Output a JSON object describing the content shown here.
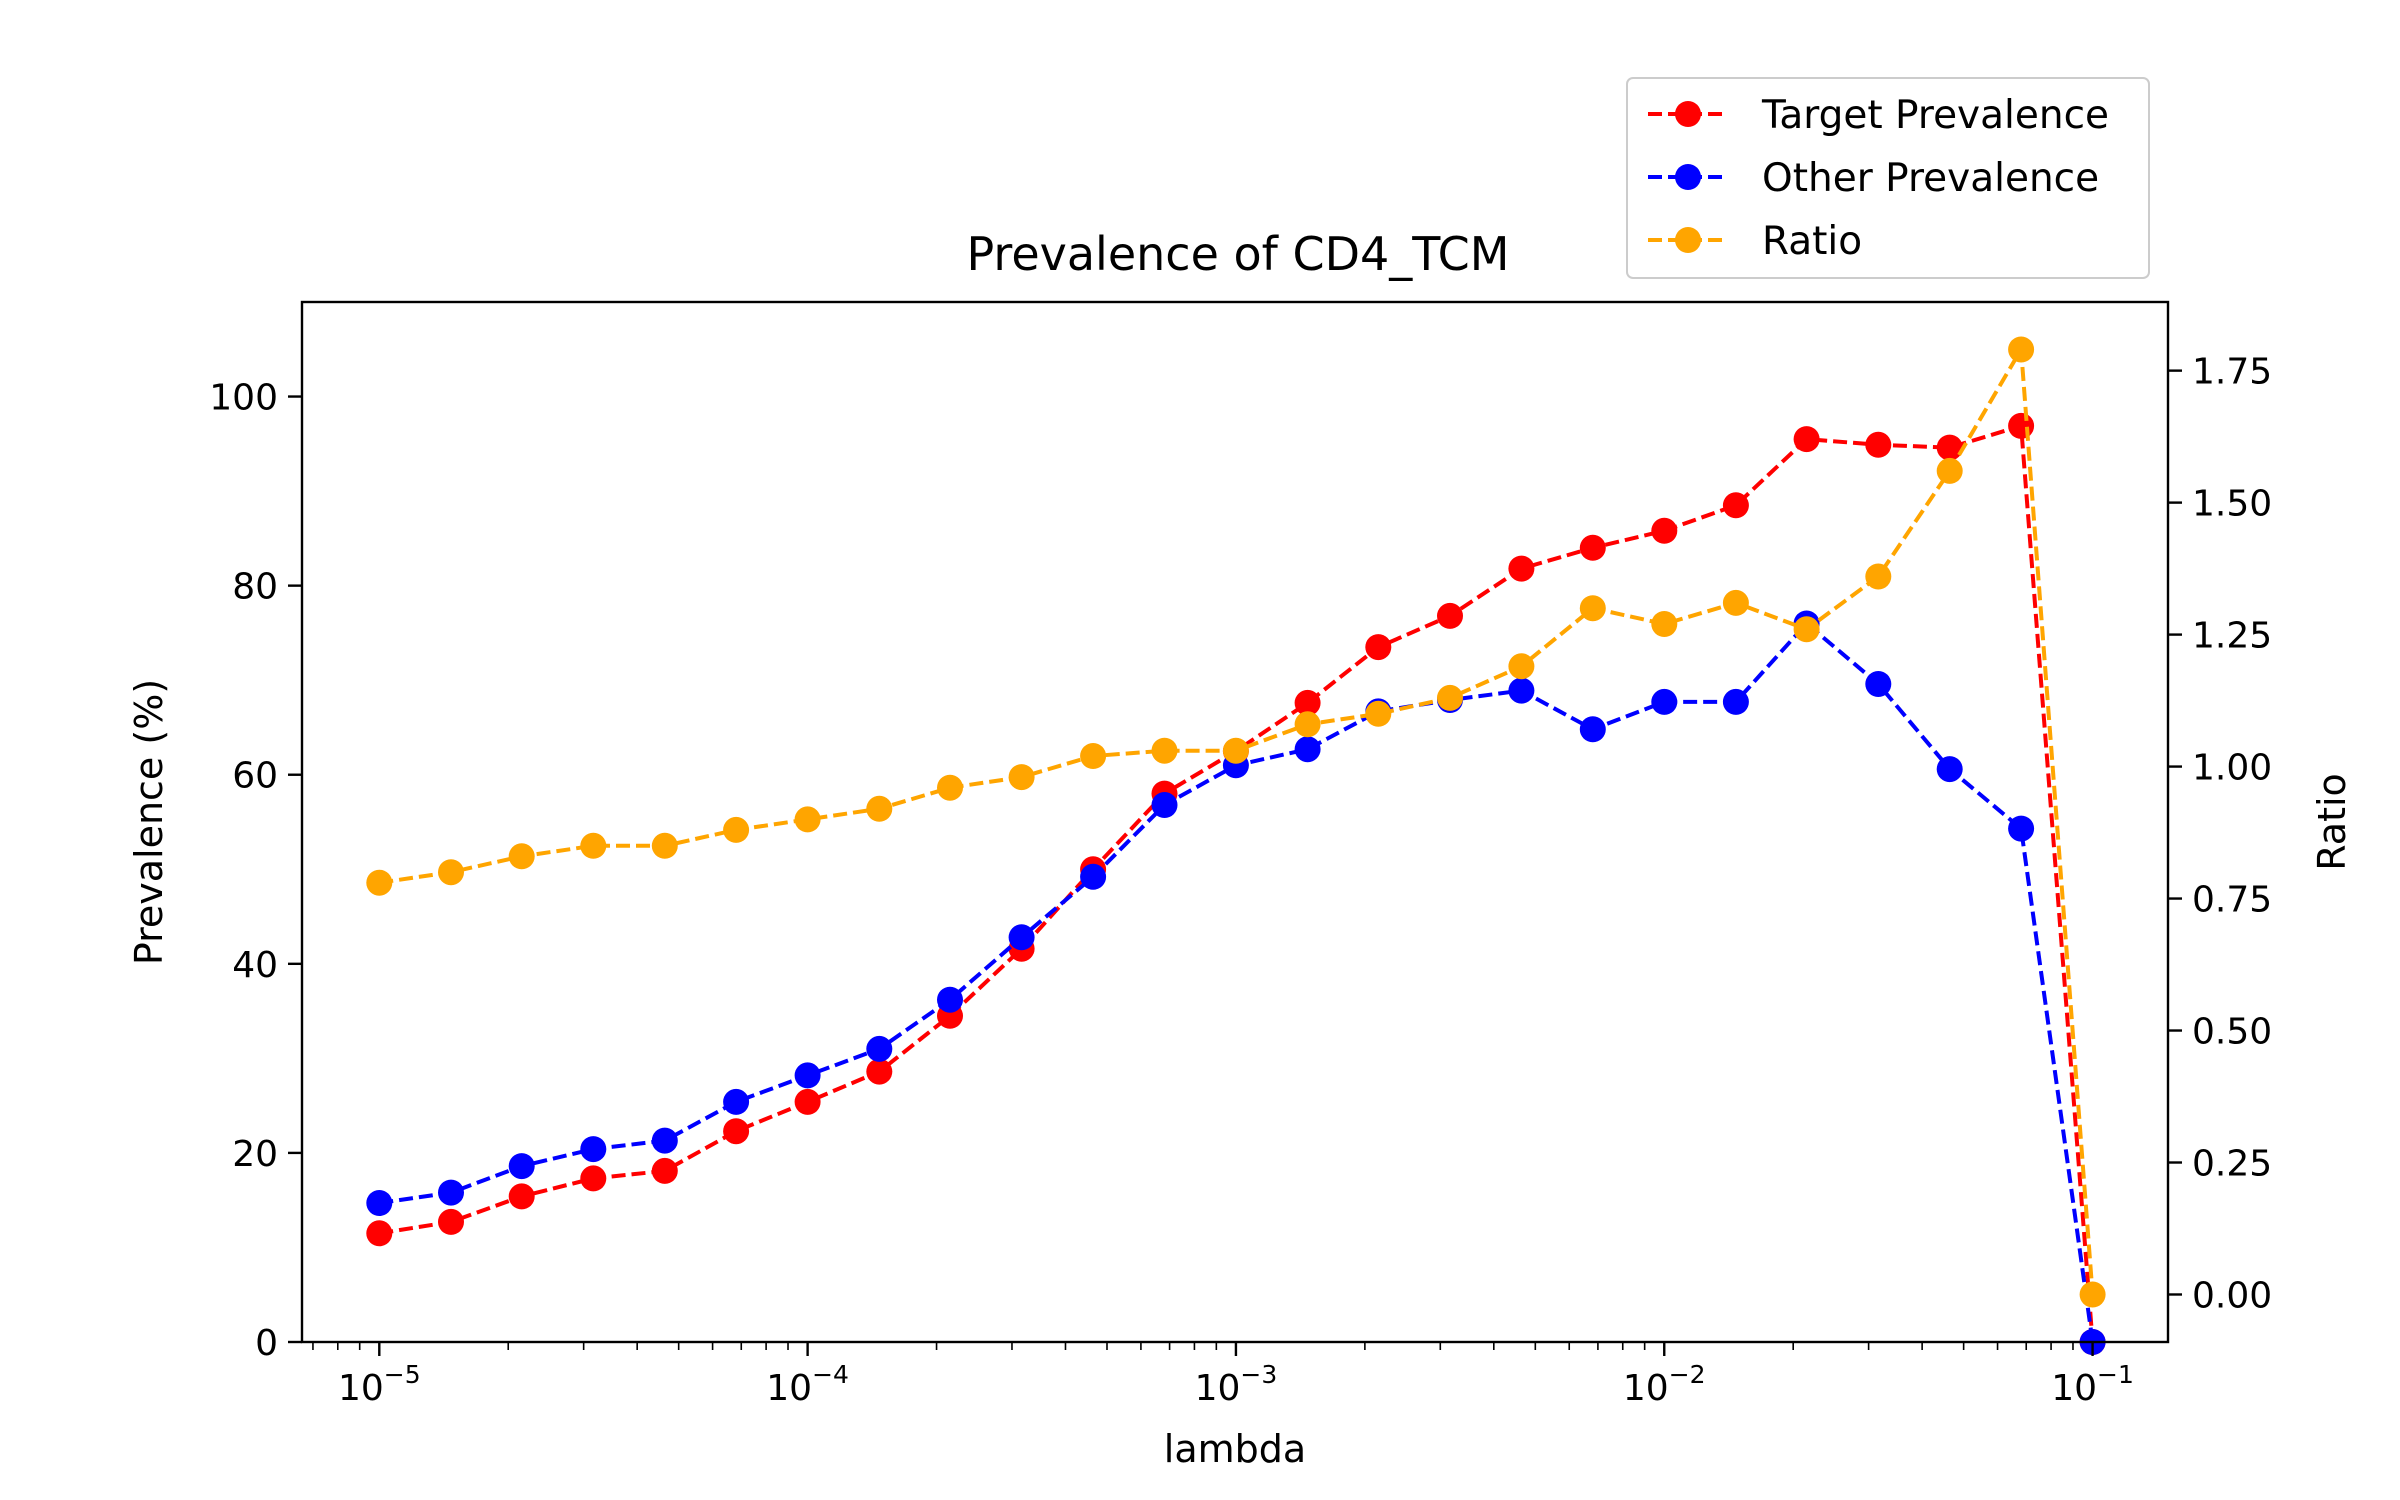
{
  "chart_data": {
    "type": "line",
    "title": "Prevalence of CD4_TCM",
    "xlabel": "lambda",
    "ylabel": "Prevalence (%)",
    "y2label": "Ratio",
    "xscale": "log",
    "xlim": [
      6.6e-06,
      0.15
    ],
    "ylim": [
      0,
      110
    ],
    "y2lim": [
      -0.09,
      1.88
    ],
    "x_ticks": [
      1e-05,
      0.0001,
      0.001,
      0.01,
      0.1
    ],
    "x_tick_labels": [
      {
        "base": "10",
        "exp": "−5"
      },
      {
        "base": "10",
        "exp": "−4"
      },
      {
        "base": "10",
        "exp": "−3"
      },
      {
        "base": "10",
        "exp": "−2"
      },
      {
        "base": "10",
        "exp": "−1"
      }
    ],
    "y_ticks": [
      0,
      20,
      40,
      60,
      80,
      100
    ],
    "y_tick_labels": [
      "0",
      "20",
      "40",
      "60",
      "80",
      "100"
    ],
    "y2_ticks": [
      0,
      0.25,
      0.5,
      0.75,
      1.0,
      1.25,
      1.5,
      1.75
    ],
    "y2_tick_labels": [
      "0.00",
      "0.25",
      "0.50",
      "0.75",
      "1.00",
      "1.25",
      "1.50",
      "1.75"
    ],
    "grid": false,
    "legend_position": "top-right",
    "x": [
      1e-05,
      1.47e-05,
      2.15e-05,
      3.16e-05,
      4.64e-05,
      6.81e-05,
      0.0001,
      0.000147,
      0.000215,
      0.000316,
      0.000464,
      0.000681,
      0.001,
      0.00147,
      0.00215,
      0.00316,
      0.00464,
      0.00681,
      0.01,
      0.0147,
      0.0215,
      0.0316,
      0.0464,
      0.0681,
      0.1
    ],
    "series": [
      {
        "name": "Target Prevalence",
        "color": "#ff0000",
        "axis": "left",
        "values": [
          11.5,
          12.7,
          15.4,
          17.3,
          18.1,
          22.3,
          25.4,
          28.6,
          34.5,
          41.6,
          50.0,
          58.0,
          62.5,
          67.6,
          73.5,
          76.8,
          81.8,
          84.0,
          85.8,
          88.5,
          95.5,
          94.9,
          94.6,
          96.9,
          0.0
        ]
      },
      {
        "name": "Other Prevalence",
        "color": "#0000ff",
        "axis": "left",
        "values": [
          14.7,
          15.8,
          18.6,
          20.4,
          21.3,
          25.4,
          28.2,
          31.0,
          36.2,
          42.8,
          49.2,
          56.8,
          61.0,
          62.7,
          66.7,
          67.9,
          68.9,
          64.8,
          67.7,
          67.7,
          76.0,
          69.6,
          60.6,
          54.3,
          0.0
        ]
      },
      {
        "name": "Ratio",
        "color": "#ffa500",
        "axis": "right",
        "values": [
          0.78,
          0.8,
          0.83,
          0.85,
          0.85,
          0.88,
          0.9,
          0.92,
          0.96,
          0.98,
          1.02,
          1.03,
          1.03,
          1.08,
          1.1,
          1.13,
          1.19,
          1.3,
          1.27,
          1.31,
          1.26,
          1.36,
          1.56,
          1.79,
          0.0
        ]
      }
    ]
  }
}
